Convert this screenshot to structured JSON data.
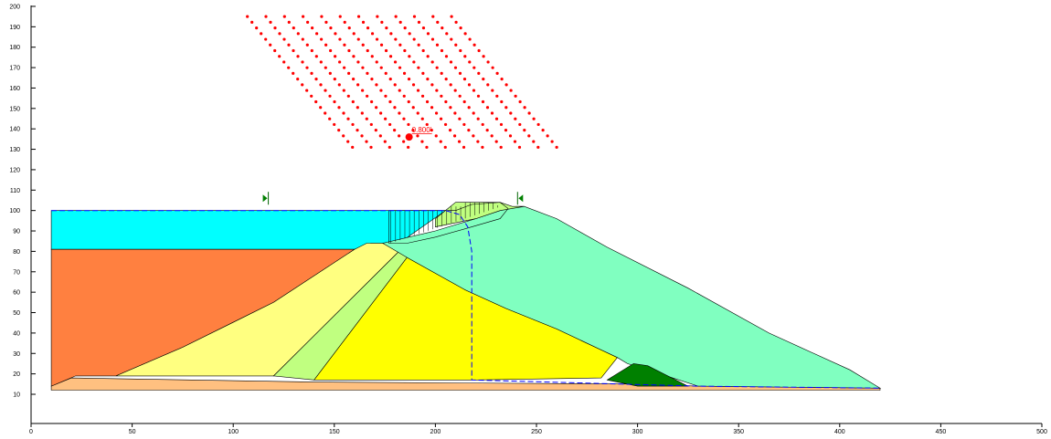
{
  "axes": {
    "x_ticks": [
      "0",
      "50",
      "100",
      "150",
      "200",
      "250",
      "300",
      "350",
      "400",
      "450",
      "500"
    ],
    "y_ticks": [
      "10",
      "20",
      "30",
      "40",
      "50",
      "60",
      "70",
      "80",
      "90",
      "100",
      "110",
      "120",
      "130",
      "140",
      "150",
      "160",
      "170",
      "180",
      "190",
      "200"
    ]
  },
  "critical_center": {
    "label": "0.800'"
  },
  "diagram": {
    "x_range": [
      0,
      500
    ],
    "y_range": [
      0,
      200
    ],
    "colors": {
      "water": "#00ffff",
      "orange_layer": "#ff8040",
      "light_yellow_zone": "#ffff80",
      "light_green_zone": "#c0ff80",
      "yellow_zone": "#ffff00",
      "mint_zone": "#80ffc0",
      "dark_green_toe": "#008000",
      "base_layer": "#ffc080",
      "grid_points": "#ff0000",
      "phreatic_line": "#0000ff"
    }
  }
}
